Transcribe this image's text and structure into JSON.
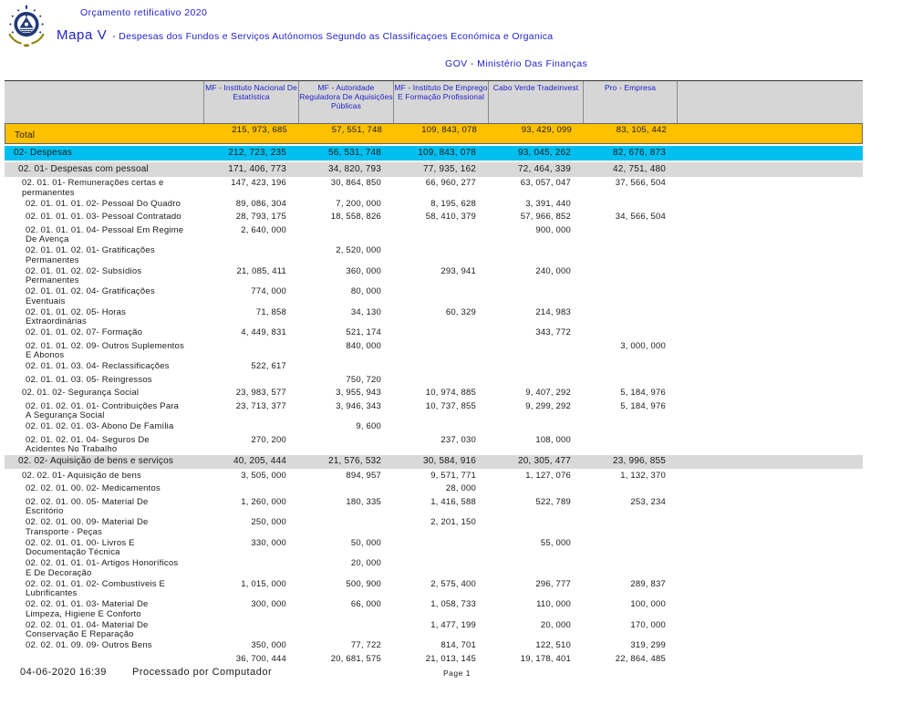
{
  "header": {
    "doc_title": "Orçamento retificativo 2020",
    "map_title": "Mapa V",
    "map_subtitle": "- Despesas dos Fundos e Serviços Autónomos Segundo as Classificaçoes Económica e Organica",
    "ministry": "GOV - Ministério Das Finanças",
    "logo_name": "cape-verde-coat-of-arms"
  },
  "colors": {
    "title_blue": "#2121cc",
    "header_gray": "#d6d6d6",
    "total_orange": "#ffc000",
    "despesas_cyan": "#00bff0",
    "section_gray": "#d9d9d9"
  },
  "table": {
    "columns": [
      "MF - Instituto Nacional De Estatística",
      "MF - Autoridade Reguladora De Aquisições Públicas",
      "MF - Instituto De Emprego E Formação Profissional",
      "Cabo Verde Tradeinvest",
      "Pro - Empresa"
    ],
    "rows": [
      {
        "label": "Total",
        "level": 0,
        "style": "total",
        "values": [
          "215, 973, 685",
          "57, 551, 748",
          "109, 843, 078",
          "93, 429, 099",
          "83, 105, 442"
        ]
      },
      {
        "label": "02- Despesas",
        "level": 0,
        "style": "despesas",
        "values": [
          "212, 723, 235",
          "56, 531, 748",
          "109, 843, 078",
          "93, 045, 262",
          "82, 676, 873"
        ]
      },
      {
        "label": "02. 01- Despesas com pessoal",
        "level": 1,
        "style": "section",
        "values": [
          "171, 406, 773",
          "34, 820, 793",
          "77, 935, 162",
          "72, 464, 339",
          "42, 751, 480"
        ]
      },
      {
        "label": "02. 01. 01- Remunerações certas e\npermanentes",
        "level": 2,
        "style": "normal",
        "values": [
          "147, 423, 196",
          "30, 864, 850",
          "66, 960, 277",
          "63, 057, 047",
          "37, 566, 504"
        ]
      },
      {
        "label": "02. 01. 01. 01. 02- Pessoal Do Quadro",
        "level": 3,
        "style": "normal",
        "values": [
          "89, 086, 304",
          "7, 200, 000",
          "8, 195, 628",
          "3, 391, 440",
          ""
        ]
      },
      {
        "label": "02. 01. 01. 01. 03- Pessoal Contratado",
        "level": 3,
        "style": "normal",
        "values": [
          "28, 793, 175",
          "18, 558, 826",
          "58, 410, 379",
          "57, 966, 852",
          "34, 566, 504"
        ]
      },
      {
        "label": "02. 01. 01. 01. 04- Pessoal Em Regime\nDe Avença",
        "level": 3,
        "style": "normal",
        "values": [
          "2, 640, 000",
          "",
          "",
          "900, 000",
          ""
        ]
      },
      {
        "label": "02. 01. 01. 02. 01- Gratificações\nPermanentes",
        "level": 3,
        "style": "normal",
        "values": [
          "",
          "2, 520, 000",
          "",
          "",
          ""
        ]
      },
      {
        "label": "02. 01. 01. 02. 02- Subsídios\nPermanentes",
        "level": 3,
        "style": "normal",
        "values": [
          "21, 085, 411",
          "360, 000",
          "293, 941",
          "240, 000",
          ""
        ]
      },
      {
        "label": "02. 01. 01. 02. 04- Gratificações\nEventuais",
        "level": 3,
        "style": "normal",
        "values": [
          "774, 000",
          "80, 000",
          "",
          "",
          ""
        ]
      },
      {
        "label": "02. 01. 01. 02. 05- Horas\nExtraordinárias",
        "level": 3,
        "style": "normal",
        "values": [
          "71, 858",
          "34, 130",
          "60, 329",
          "214, 983",
          ""
        ]
      },
      {
        "label": "02. 01. 01. 02. 07- Formação",
        "level": 3,
        "style": "normal",
        "values": [
          "4, 449, 831",
          "521, 174",
          "",
          "343, 772",
          ""
        ]
      },
      {
        "label": "02. 01. 01. 02. 09- Outros Suplementos\nE Abonos",
        "level": 3,
        "style": "normal",
        "values": [
          "",
          "840, 000",
          "",
          "",
          "3, 000, 000"
        ]
      },
      {
        "label": "02. 01. 01. 03. 04- Reclassificações",
        "level": 3,
        "style": "normal",
        "values": [
          "522, 617",
          "",
          "",
          "",
          ""
        ]
      },
      {
        "label": "02. 01. 01. 03. 05- Reingressos",
        "level": 3,
        "style": "normal",
        "values": [
          "",
          "750, 720",
          "",
          "",
          ""
        ]
      },
      {
        "label": "02. 01. 02- Segurança Social",
        "level": 2,
        "style": "normal",
        "values": [
          "23, 983, 577",
          "3, 955, 943",
          "10, 974, 885",
          "9, 407, 292",
          "5, 184, 976"
        ]
      },
      {
        "label": "02. 01. 02. 01. 01- Contribuições Para\nA Segurança Social",
        "level": 3,
        "style": "normal",
        "values": [
          "23, 713, 377",
          "3, 946, 343",
          "10, 737, 855",
          "9, 299, 292",
          "5, 184, 976"
        ]
      },
      {
        "label": "02. 01. 02. 01. 03- Abono De Família",
        "level": 3,
        "style": "normal",
        "values": [
          "",
          "9, 600",
          "",
          "",
          ""
        ]
      },
      {
        "label": "02. 01. 02. 01. 04- Seguros De\nAcidentes No Trabalho",
        "level": 3,
        "style": "normal",
        "values": [
          "270, 200",
          "",
          "237, 030",
          "108, 000",
          ""
        ]
      },
      {
        "label": "02. 02- Aquisição de bens e serviços",
        "level": 1,
        "style": "section",
        "values": [
          "40, 205, 444",
          "21, 576, 532",
          "30, 584, 916",
          "20, 305, 477",
          "23, 996, 855"
        ]
      },
      {
        "label": "02. 02. 01- Aquisição de bens",
        "level": 2,
        "style": "normal",
        "values": [
          "3, 505, 000",
          "894, 957",
          "9, 571, 771",
          "1, 127, 076",
          "1, 132, 370"
        ]
      },
      {
        "label": "02. 02. 01. 00. 02- Medicamentos",
        "level": 3,
        "style": "normal",
        "values": [
          "",
          "",
          "28, 000",
          "",
          ""
        ]
      },
      {
        "label": "02. 02. 01. 00. 05- Material De\nEscritório",
        "level": 3,
        "style": "normal",
        "values": [
          "1, 260, 000",
          "180, 335",
          "1, 416, 588",
          "522, 789",
          "253, 234"
        ]
      },
      {
        "label": "02. 02. 01. 00. 09- Material De\nTransporte - Peças",
        "level": 3,
        "style": "normal",
        "values": [
          "250, 000",
          "",
          "2, 201, 150",
          "",
          ""
        ]
      },
      {
        "label": "02. 02. 01. 01. 00- Livros E\nDocumentação Técnica",
        "level": 3,
        "style": "normal",
        "values": [
          "330, 000",
          "50, 000",
          "",
          "55, 000",
          ""
        ]
      },
      {
        "label": "02. 02. 01. 01. 01- Artigos Honoríficos\nE De Decoração",
        "level": 3,
        "style": "normal",
        "values": [
          "",
          "20, 000",
          "",
          "",
          ""
        ]
      },
      {
        "label": "02. 02. 01. 01. 02- Combustíveis E\nLubrificantes",
        "level": 3,
        "style": "normal",
        "values": [
          "1, 015, 000",
          "500, 900",
          "2, 575, 400",
          "296, 777",
          "289, 837"
        ]
      },
      {
        "label": "02. 02. 01. 01. 03- Material De\nLimpeza, Higiene E Conforto",
        "level": 3,
        "style": "normal",
        "values": [
          "300, 000",
          "66, 000",
          "1, 058, 733",
          "110, 000",
          "100, 000"
        ]
      },
      {
        "label": "02. 02. 01. 01. 04- Material De\nConservação E Reparação",
        "level": 3,
        "style": "normal",
        "values": [
          "",
          "",
          "1, 477, 199",
          "20, 000",
          "170, 000"
        ]
      },
      {
        "label": "02. 02. 01. 09. 09- Outros Bens",
        "level": 3,
        "style": "normal",
        "values": [
          "350, 000",
          "77, 722",
          "814, 701",
          "122, 510",
          "319, 299"
        ]
      },
      {
        "label": "",
        "level": 3,
        "style": "normal",
        "values": [
          "36, 700, 444",
          "20, 681, 575",
          "21, 013, 145",
          "19, 178, 401",
          "22, 864, 485"
        ]
      }
    ]
  },
  "footer": {
    "datetime": "04-06-2020 16:39",
    "processed": "Processado por Computador",
    "page": "Page 1"
  }
}
